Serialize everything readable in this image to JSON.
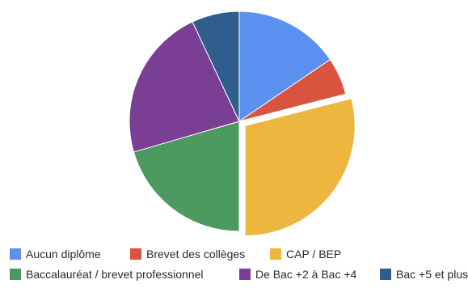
{
  "chart_data": {
    "type": "pie",
    "title": "",
    "categories": [
      "Aucun diplôme",
      "Brevet des collèges",
      "CAP / BEP",
      "Baccalauréat / brevet professionnel",
      "De Bac +2 à Bac +4",
      "Bac +5 et plus"
    ],
    "values": [
      15.5,
      5.5,
      29.0,
      20.5,
      22.5,
      7.0
    ],
    "unit": "%",
    "colors": [
      "#5B8FF0",
      "#D9533E",
      "#EDB63F",
      "#4C9A5F",
      "#7A3F95",
      "#2F5E8C"
    ],
    "exploded": [
      "CAP / BEP"
    ],
    "legend_position": "bottom"
  }
}
